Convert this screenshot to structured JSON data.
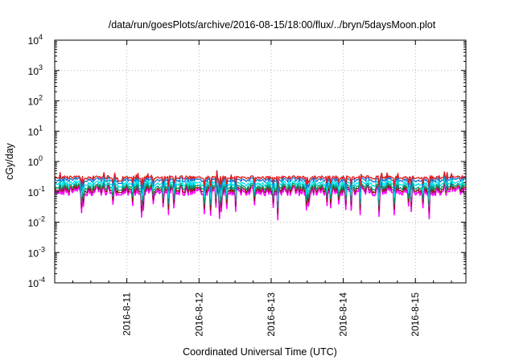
{
  "chart_data": {
    "type": "line",
    "title": "/data/run/goesPlots/archive/2016-08-15/18:00/flux/../bryn/5daysMoon.plot",
    "xlabel": "Coordinated Universal Time (UTC)",
    "ylabel": "cGy/day",
    "yscale": "log",
    "ylim": [
      0.0001,
      10000
    ],
    "xlim": [
      0,
      5.7
    ],
    "x_unit": "days since 2016-8-10 00:00",
    "grid": true,
    "legend": "none",
    "y_ticks": [
      {
        "base": "10",
        "exp": "4",
        "value": 10000
      },
      {
        "base": "10",
        "exp": "3",
        "value": 1000
      },
      {
        "base": "10",
        "exp": "2",
        "value": 100
      },
      {
        "base": "10",
        "exp": "1",
        "value": 10
      },
      {
        "base": "10",
        "exp": "0",
        "value": 1
      },
      {
        "base": "10",
        "exp": "-1",
        "value": 0.1
      },
      {
        "base": "10",
        "exp": "-2",
        "value": 0.01
      },
      {
        "base": "10",
        "exp": "-3",
        "value": 0.001
      },
      {
        "base": "10",
        "exp": "-4",
        "value": 0.0001
      }
    ],
    "x_ticks": [
      {
        "label": "2016-8-11",
        "value": 1
      },
      {
        "label": "2016-8-12",
        "value": 2
      },
      {
        "label": "2016-8-13",
        "value": 3
      },
      {
        "label": "2016-8-14",
        "value": 4
      },
      {
        "label": "2016-8-15",
        "value": 5
      }
    ],
    "series": [
      {
        "color": "#ff00ff",
        "base": 0.105
      },
      {
        "color": "#8b1a1a",
        "base": 0.125
      },
      {
        "color": "#009e73",
        "base": 0.15
      },
      {
        "color": "#00e5ee",
        "base": 0.19
      },
      {
        "color": "#1874cd",
        "base": 0.25
      },
      {
        "color": "#e41a1c",
        "base": 0.3
      }
    ]
  }
}
